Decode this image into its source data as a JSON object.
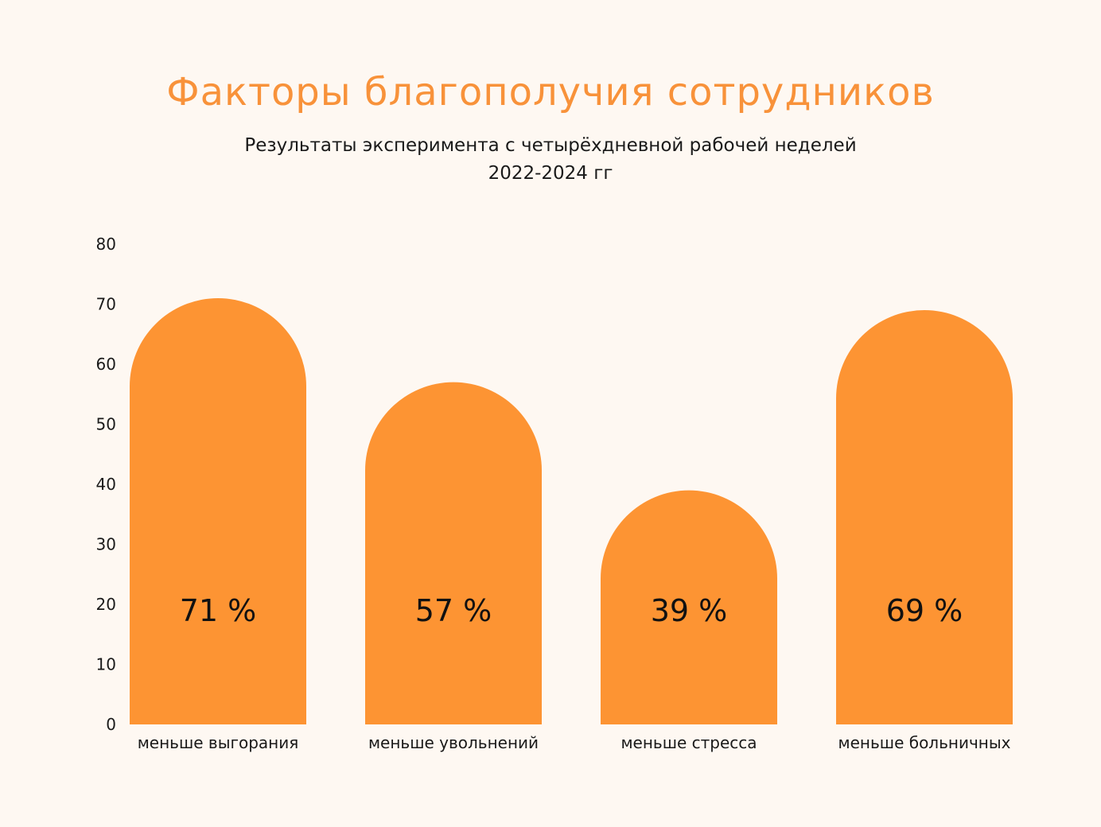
{
  "colors": {
    "bar": "#fd9433",
    "title": "#f8923a",
    "text": "#1a1a1a",
    "background": "#fef8f2"
  },
  "chart_data": {
    "type": "bar",
    "title": "Факторы благополучия сотрудников",
    "subtitle": "Результаты эксперимента с четырёхдневной рабочей неделей",
    "subtitle2": "2022-2024 гг",
    "categories": [
      "меньше выгорания",
      "меньше увольнений",
      "меньше стресса",
      "меньше больничных"
    ],
    "values": [
      71,
      57,
      39,
      69
    ],
    "data_labels": [
      "71 %",
      "57 %",
      "39 %",
      "69 %"
    ],
    "yticks": [
      0,
      10,
      20,
      30,
      40,
      50,
      60,
      70,
      80
    ],
    "ylim": [
      0,
      80
    ],
    "xlabel": "",
    "ylabel": "",
    "grid": false
  }
}
